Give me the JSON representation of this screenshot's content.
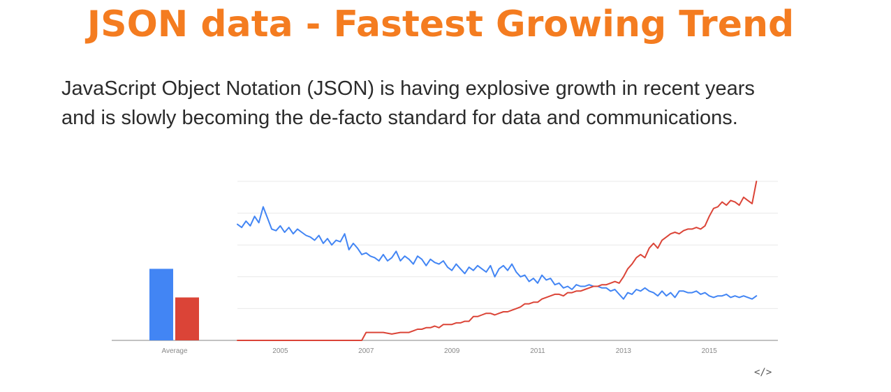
{
  "header": {
    "title": "JSON data - Fastest Growing Trend",
    "subtitle_lines": [
      "JavaScript Object Notation (JSON) is having explosive growth in recent years",
      "and is slowly becoming the de-facto standard for data and communications."
    ]
  },
  "embed": {
    "icon": "code-embed-icon",
    "glyph": "</>"
  },
  "chart_data": {
    "type": "line",
    "title": "",
    "xlabel": "",
    "ylabel": "",
    "grid": true,
    "legend": "none",
    "xlim": [
      2004.0,
      2016.6
    ],
    "ylim": [
      0,
      100
    ],
    "x_ticks": [
      "2005",
      "2007",
      "2009",
      "2011",
      "2013",
      "2015"
    ],
    "average_label": "Average",
    "colors": {
      "blue": "#4285f4",
      "red": "#db4437",
      "grid": "#e8e8e8",
      "axis": "#9e9e9e",
      "tick": "#888888"
    },
    "average": [
      {
        "color": "#4285f4",
        "value": 45
      },
      {
        "color": "#db4437",
        "value": 27
      }
    ],
    "series": [
      {
        "color": "#4285f4",
        "points": [
          [
            2004.0,
            73
          ],
          [
            2004.1,
            71
          ],
          [
            2004.2,
            75
          ],
          [
            2004.3,
            72
          ],
          [
            2004.4,
            78
          ],
          [
            2004.5,
            74
          ],
          [
            2004.6,
            84
          ],
          [
            2004.7,
            77
          ],
          [
            2004.8,
            70
          ],
          [
            2004.9,
            69
          ],
          [
            2005.0,
            72
          ],
          [
            2005.1,
            68
          ],
          [
            2005.2,
            71
          ],
          [
            2005.3,
            67
          ],
          [
            2005.4,
            70
          ],
          [
            2005.5,
            68
          ],
          [
            2005.6,
            66
          ],
          [
            2005.7,
            65
          ],
          [
            2005.8,
            63
          ],
          [
            2005.9,
            66
          ],
          [
            2006.0,
            61
          ],
          [
            2006.1,
            64
          ],
          [
            2006.2,
            60
          ],
          [
            2006.3,
            63
          ],
          [
            2006.4,
            62
          ],
          [
            2006.5,
            67
          ],
          [
            2006.6,
            57
          ],
          [
            2006.7,
            61
          ],
          [
            2006.8,
            58
          ],
          [
            2006.9,
            54
          ],
          [
            2007.0,
            55
          ],
          [
            2007.1,
            53
          ],
          [
            2007.2,
            52
          ],
          [
            2007.3,
            50
          ],
          [
            2007.4,
            54
          ],
          [
            2007.5,
            50
          ],
          [
            2007.6,
            52
          ],
          [
            2007.7,
            56
          ],
          [
            2007.8,
            50
          ],
          [
            2007.9,
            53
          ],
          [
            2008.0,
            51
          ],
          [
            2008.1,
            48
          ],
          [
            2008.2,
            53
          ],
          [
            2008.3,
            51
          ],
          [
            2008.4,
            47
          ],
          [
            2008.5,
            51
          ],
          [
            2008.6,
            49
          ],
          [
            2008.7,
            48
          ],
          [
            2008.8,
            50
          ],
          [
            2008.9,
            46
          ],
          [
            2009.0,
            44
          ],
          [
            2009.1,
            48
          ],
          [
            2009.2,
            45
          ],
          [
            2009.3,
            42
          ],
          [
            2009.4,
            46
          ],
          [
            2009.5,
            44
          ],
          [
            2009.6,
            47
          ],
          [
            2009.7,
            45
          ],
          [
            2009.8,
            43
          ],
          [
            2009.9,
            47
          ],
          [
            2010.0,
            40
          ],
          [
            2010.1,
            45
          ],
          [
            2010.2,
            47
          ],
          [
            2010.3,
            44
          ],
          [
            2010.4,
            48
          ],
          [
            2010.5,
            43
          ],
          [
            2010.6,
            40
          ],
          [
            2010.7,
            41
          ],
          [
            2010.8,
            37
          ],
          [
            2010.9,
            39
          ],
          [
            2011.0,
            36
          ],
          [
            2011.1,
            41
          ],
          [
            2011.2,
            38
          ],
          [
            2011.3,
            39
          ],
          [
            2011.4,
            35
          ],
          [
            2011.5,
            36
          ],
          [
            2011.6,
            33
          ],
          [
            2011.7,
            34
          ],
          [
            2011.8,
            32
          ],
          [
            2011.9,
            35
          ],
          [
            2012.0,
            34
          ],
          [
            2012.1,
            34
          ],
          [
            2012.2,
            35
          ],
          [
            2012.3,
            34
          ],
          [
            2012.4,
            34
          ],
          [
            2012.5,
            33
          ],
          [
            2012.6,
            33
          ],
          [
            2012.7,
            31
          ],
          [
            2012.8,
            32
          ],
          [
            2012.9,
            29
          ],
          [
            2013.0,
            26
          ],
          [
            2013.1,
            30
          ],
          [
            2013.2,
            29
          ],
          [
            2013.3,
            32
          ],
          [
            2013.4,
            31
          ],
          [
            2013.5,
            33
          ],
          [
            2013.6,
            31
          ],
          [
            2013.7,
            30
          ],
          [
            2013.8,
            28
          ],
          [
            2013.9,
            31
          ],
          [
            2014.0,
            28
          ],
          [
            2014.1,
            30
          ],
          [
            2014.2,
            27
          ],
          [
            2014.3,
            31
          ],
          [
            2014.4,
            31
          ],
          [
            2014.5,
            30
          ],
          [
            2014.6,
            30
          ],
          [
            2014.7,
            31
          ],
          [
            2014.8,
            29
          ],
          [
            2014.9,
            30
          ],
          [
            2015.0,
            28
          ],
          [
            2015.1,
            27
          ],
          [
            2015.2,
            28
          ],
          [
            2015.3,
            28
          ],
          [
            2015.4,
            29
          ],
          [
            2015.5,
            27
          ],
          [
            2015.6,
            28
          ],
          [
            2015.7,
            27
          ],
          [
            2015.8,
            28
          ],
          [
            2015.9,
            27
          ],
          [
            2016.0,
            26
          ],
          [
            2016.1,
            28
          ]
        ]
      },
      {
        "color": "#db4437",
        "points": [
          [
            2004.0,
            0
          ],
          [
            2005.0,
            0
          ],
          [
            2006.0,
            0
          ],
          [
            2006.9,
            0
          ],
          [
            2007.0,
            5
          ],
          [
            2007.2,
            5
          ],
          [
            2007.4,
            5
          ],
          [
            2007.6,
            4
          ],
          [
            2007.8,
            5
          ],
          [
            2008.0,
            5
          ],
          [
            2008.1,
            6
          ],
          [
            2008.2,
            7
          ],
          [
            2008.3,
            7
          ],
          [
            2008.4,
            8
          ],
          [
            2008.5,
            8
          ],
          [
            2008.6,
            9
          ],
          [
            2008.7,
            8
          ],
          [
            2008.8,
            10
          ],
          [
            2008.9,
            10
          ],
          [
            2009.0,
            10
          ],
          [
            2009.1,
            11
          ],
          [
            2009.2,
            11
          ],
          [
            2009.3,
            12
          ],
          [
            2009.4,
            12
          ],
          [
            2009.5,
            15
          ],
          [
            2009.6,
            15
          ],
          [
            2009.7,
            16
          ],
          [
            2009.8,
            17
          ],
          [
            2009.9,
            17
          ],
          [
            2010.0,
            16
          ],
          [
            2010.1,
            17
          ],
          [
            2010.2,
            18
          ],
          [
            2010.3,
            18
          ],
          [
            2010.4,
            19
          ],
          [
            2010.5,
            20
          ],
          [
            2010.6,
            21
          ],
          [
            2010.7,
            23
          ],
          [
            2010.8,
            23
          ],
          [
            2010.9,
            24
          ],
          [
            2011.0,
            24
          ],
          [
            2011.1,
            26
          ],
          [
            2011.2,
            27
          ],
          [
            2011.3,
            28
          ],
          [
            2011.4,
            29
          ],
          [
            2011.5,
            29
          ],
          [
            2011.6,
            28
          ],
          [
            2011.7,
            30
          ],
          [
            2011.8,
            30
          ],
          [
            2011.9,
            31
          ],
          [
            2012.0,
            31
          ],
          [
            2012.1,
            32
          ],
          [
            2012.2,
            33
          ],
          [
            2012.3,
            34
          ],
          [
            2012.4,
            34
          ],
          [
            2012.5,
            35
          ],
          [
            2012.6,
            35
          ],
          [
            2012.7,
            36
          ],
          [
            2012.8,
            37
          ],
          [
            2012.9,
            36
          ],
          [
            2013.0,
            40
          ],
          [
            2013.1,
            45
          ],
          [
            2013.2,
            48
          ],
          [
            2013.3,
            52
          ],
          [
            2013.4,
            54
          ],
          [
            2013.5,
            52
          ],
          [
            2013.6,
            58
          ],
          [
            2013.7,
            61
          ],
          [
            2013.8,
            58
          ],
          [
            2013.9,
            63
          ],
          [
            2014.0,
            65
          ],
          [
            2014.1,
            67
          ],
          [
            2014.2,
            68
          ],
          [
            2014.3,
            67
          ],
          [
            2014.4,
            69
          ],
          [
            2014.5,
            70
          ],
          [
            2014.6,
            70
          ],
          [
            2014.7,
            71
          ],
          [
            2014.8,
            70
          ],
          [
            2014.9,
            72
          ],
          [
            2015.0,
            78
          ],
          [
            2015.1,
            83
          ],
          [
            2015.2,
            84
          ],
          [
            2015.3,
            87
          ],
          [
            2015.4,
            85
          ],
          [
            2015.5,
            88
          ],
          [
            2015.6,
            87
          ],
          [
            2015.7,
            85
          ],
          [
            2015.8,
            90
          ],
          [
            2015.9,
            88
          ],
          [
            2016.0,
            86
          ],
          [
            2016.1,
            100
          ]
        ]
      }
    ]
  }
}
